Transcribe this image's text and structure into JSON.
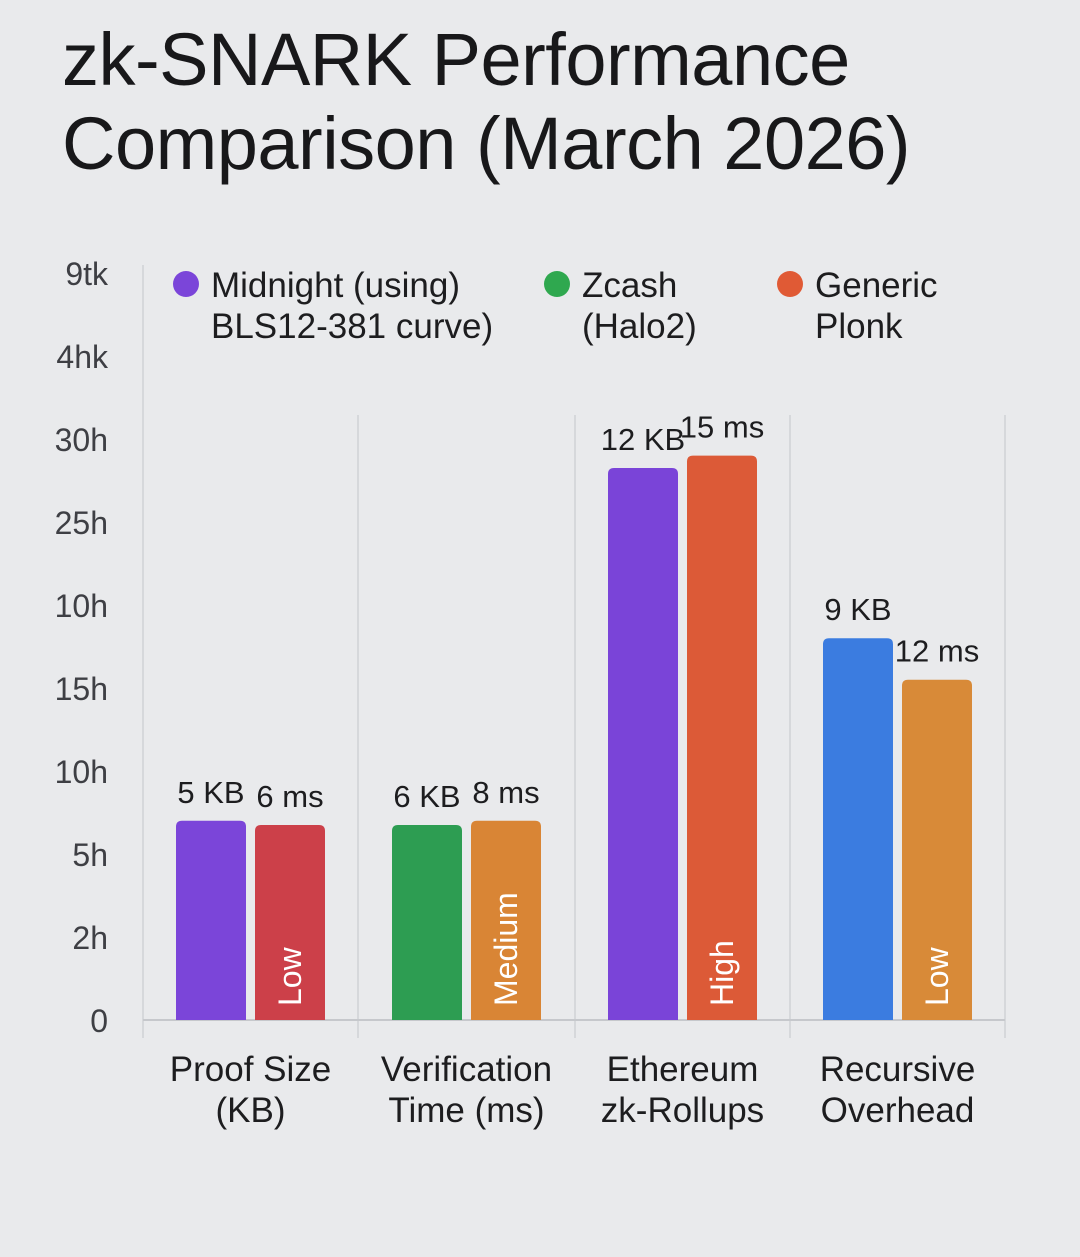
{
  "title_line1": "zk-SNARK Performance",
  "title_line2": "Comparison (March 2026)",
  "legend": [
    {
      "line1": "Midnight (using)",
      "line2": "BLS12-381 curve)",
      "color": "#7b45d9"
    },
    {
      "line1": "Zcash",
      "line2": "(Halo2)",
      "color": "#2fa84f"
    },
    {
      "line1": "Generic",
      "line2": "Plonk",
      "color": "#e05a35"
    }
  ],
  "chart_data": {
    "type": "bar",
    "title": "zk-SNARK Performance Comparison (March 2026)",
    "y_tick_labels": [
      "0",
      "2h",
      "5h",
      "10h",
      "15h",
      "10h",
      "25h",
      "30h",
      "4hk",
      "9tk"
    ],
    "categories": [
      {
        "line1": "Proof Size",
        "line2": "(KB)"
      },
      {
        "line1": "Verification",
        "line2": "Time (ms)"
      },
      {
        "line1": "Ethereum",
        "line2": "zk-Rollups"
      },
      {
        "line1": "Recursive",
        "line2": "Overhead"
      }
    ],
    "bars": [
      {
        "category": 0,
        "color": "#7b45d9",
        "value": 2.4,
        "top_label": "5 KB",
        "inner_label": ""
      },
      {
        "category": 0,
        "color": "#cc4049",
        "value": 2.35,
        "top_label": "6 ms",
        "inner_label": "Low"
      },
      {
        "category": 1,
        "color": "#2d9d52",
        "value": 2.35,
        "top_label": "6 KB",
        "inner_label": ""
      },
      {
        "category": 1,
        "color": "#d98535",
        "value": 2.4,
        "top_label": "8 ms",
        "inner_label": "Medium"
      },
      {
        "category": 2,
        "color": "#7a44d8",
        "value": 6.65,
        "top_label": "12 KB",
        "inner_label": ""
      },
      {
        "category": 2,
        "color": "#dc5a37",
        "value": 6.8,
        "top_label": "15 ms",
        "inner_label": "High"
      },
      {
        "category": 3,
        "color": "#3b7ce0",
        "value": 4.6,
        "top_label": "9 KB",
        "inner_label": ""
      },
      {
        "category": 3,
        "color": "#d88a38",
        "value": 4.1,
        "top_label": "12 ms",
        "inner_label": "Low"
      }
    ]
  }
}
